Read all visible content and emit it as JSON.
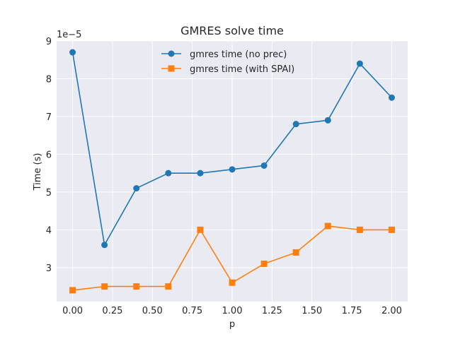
{
  "chart_data": {
    "type": "line",
    "title": "GMRES solve time",
    "xlabel": "p",
    "ylabel": "Time (s)",
    "y_offset_label": "1e−5",
    "y_scale_exponent": -5,
    "xlim": [
      -0.1,
      2.1
    ],
    "ylim": [
      2.1,
      9.0
    ],
    "x_ticks": [
      0.0,
      0.25,
      0.5,
      0.75,
      1.0,
      1.25,
      1.5,
      1.75,
      2.0
    ],
    "x_tick_labels": [
      "0.00",
      "0.25",
      "0.50",
      "0.75",
      "1.00",
      "1.25",
      "1.50",
      "1.75",
      "2.00"
    ],
    "y_ticks": [
      3,
      4,
      5,
      6,
      7,
      8,
      9
    ],
    "y_tick_labels": [
      "3",
      "4",
      "5",
      "6",
      "7",
      "8",
      "9"
    ],
    "grid": true,
    "legend_position": "top-center",
    "x": [
      0.0,
      0.2,
      0.4,
      0.6,
      0.8,
      1.0,
      1.2,
      1.4,
      1.6,
      1.8,
      2.0
    ],
    "series": [
      {
        "name": "gmres time (no prec)",
        "color": "#1f77b4",
        "marker": "circle",
        "values": [
          8.7,
          3.6,
          5.1,
          5.5,
          5.5,
          5.6,
          5.7,
          6.8,
          6.9,
          8.4,
          7.5
        ]
      },
      {
        "name": "gmres time (with SPAI)",
        "color": "#ff7f0e",
        "marker": "square",
        "values": [
          2.4,
          2.5,
          2.5,
          2.5,
          4.0,
          2.6,
          3.1,
          3.4,
          4.1,
          4.0,
          4.0
        ]
      }
    ]
  }
}
